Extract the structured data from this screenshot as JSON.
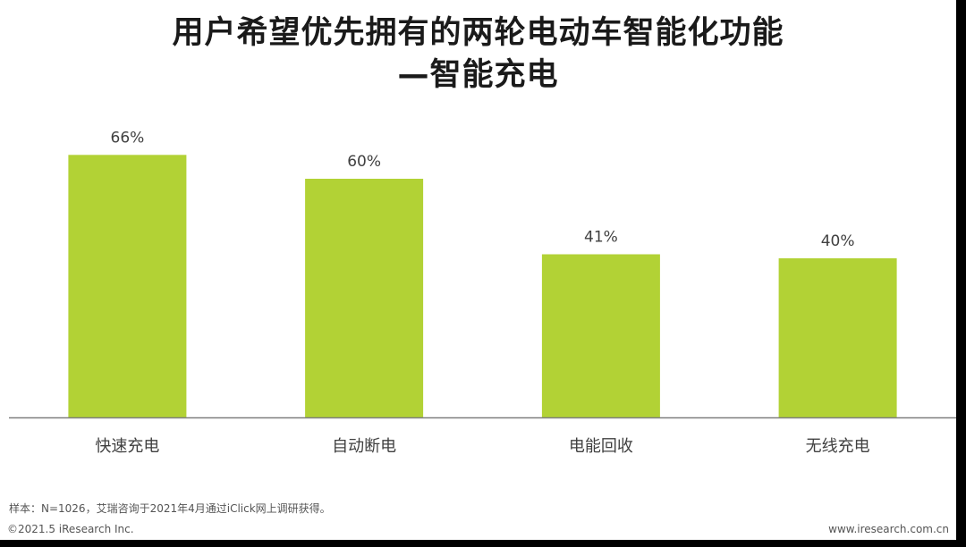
{
  "chart_title": {
    "line1": "用户希望优先拥有的两轮电动车智能化功能",
    "line2": "—智能充电"
  },
  "chart_data": {
    "type": "bar",
    "categories": [
      "快速充电",
      "自动断电",
      "电能回收",
      "无线充电"
    ],
    "values": [
      66,
      60,
      41,
      40
    ],
    "value_labels": [
      "66%",
      "60%",
      "41%",
      "40%"
    ],
    "unit": "%",
    "ylim": [
      0,
      70
    ],
    "grid": false,
    "bar_color": "#b2d235",
    "axis_color": "#7f7f7f"
  },
  "footer": {
    "source_note": "样本：N=1026，艾瑞咨询于2021年4月通过iClick网上调研获得。",
    "copyright": "©2021.5 iResearch Inc.",
    "website": "www.iresearch.com.cn"
  }
}
